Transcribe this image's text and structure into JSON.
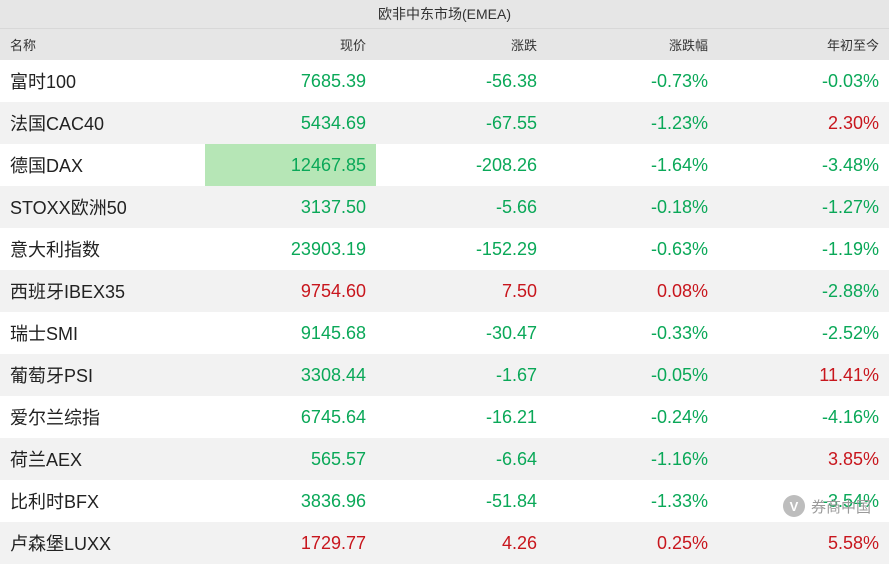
{
  "title": "欧非中东市场(EMEA)",
  "columns": [
    "名称",
    "现价",
    "涨跌",
    "涨跌幅",
    "年初至今"
  ],
  "colors": {
    "positive": "#c8161d",
    "negative": "#0aa858",
    "name": "#222222",
    "header_bg": "#e6e6e6",
    "row_even_bg": "#f2f2f2",
    "row_odd_bg": "#ffffff",
    "highlight_bg": "#b6e6b6"
  },
  "highlight": {
    "row": 2,
    "col": "price"
  },
  "rows": [
    {
      "name": "富时100",
      "price": "7685.39",
      "price_sign": "neg",
      "change": "-56.38",
      "change_sign": "neg",
      "pct": "-0.73%",
      "pct_sign": "neg",
      "ytd": "-0.03%",
      "ytd_sign": "neg"
    },
    {
      "name": "法国CAC40",
      "price": "5434.69",
      "price_sign": "neg",
      "change": "-67.55",
      "change_sign": "neg",
      "pct": "-1.23%",
      "pct_sign": "neg",
      "ytd": "2.30%",
      "ytd_sign": "pos"
    },
    {
      "name": "德国DAX",
      "price": "12467.85",
      "price_sign": "neg",
      "change": "-208.26",
      "change_sign": "neg",
      "pct": "-1.64%",
      "pct_sign": "neg",
      "ytd": "-3.48%",
      "ytd_sign": "neg"
    },
    {
      "name": "STOXX欧洲50",
      "price": "3137.50",
      "price_sign": "neg",
      "change": "-5.66",
      "change_sign": "neg",
      "pct": "-0.18%",
      "pct_sign": "neg",
      "ytd": "-1.27%",
      "ytd_sign": "neg"
    },
    {
      "name": "意大利指数",
      "price": "23903.19",
      "price_sign": "neg",
      "change": "-152.29",
      "change_sign": "neg",
      "pct": "-0.63%",
      "pct_sign": "neg",
      "ytd": "-1.19%",
      "ytd_sign": "neg"
    },
    {
      "name": "西班牙IBEX35",
      "price": "9754.60",
      "price_sign": "pos",
      "change": "7.50",
      "change_sign": "pos",
      "pct": "0.08%",
      "pct_sign": "pos",
      "ytd": "-2.88%",
      "ytd_sign": "neg"
    },
    {
      "name": "瑞士SMI",
      "price": "9145.68",
      "price_sign": "neg",
      "change": "-30.47",
      "change_sign": "neg",
      "pct": "-0.33%",
      "pct_sign": "neg",
      "ytd": "-2.52%",
      "ytd_sign": "neg"
    },
    {
      "name": "葡萄牙PSI",
      "price": "3308.44",
      "price_sign": "neg",
      "change": "-1.67",
      "change_sign": "neg",
      "pct": "-0.05%",
      "pct_sign": "neg",
      "ytd": "11.41%",
      "ytd_sign": "pos"
    },
    {
      "name": "爱尔兰综指",
      "price": "6745.64",
      "price_sign": "neg",
      "change": "-16.21",
      "change_sign": "neg",
      "pct": "-0.24%",
      "pct_sign": "neg",
      "ytd": "-4.16%",
      "ytd_sign": "neg"
    },
    {
      "name": "荷兰AEX",
      "price": "565.57",
      "price_sign": "neg",
      "change": "-6.64",
      "change_sign": "neg",
      "pct": "-1.16%",
      "pct_sign": "neg",
      "ytd": "3.85%",
      "ytd_sign": "pos"
    },
    {
      "name": "比利时BFX",
      "price": "3836.96",
      "price_sign": "neg",
      "change": "-51.84",
      "change_sign": "neg",
      "pct": "-1.33%",
      "pct_sign": "neg",
      "ytd": "-3.54%",
      "ytd_sign": "neg"
    },
    {
      "name": "卢森堡LUXX",
      "price": "1729.77",
      "price_sign": "pos",
      "change": "4.26",
      "change_sign": "pos",
      "pct": "0.25%",
      "pct_sign": "pos",
      "ytd": "5.58%",
      "ytd_sign": "pos"
    }
  ],
  "watermark": {
    "icon_text": "V",
    "label": "券商中国"
  }
}
